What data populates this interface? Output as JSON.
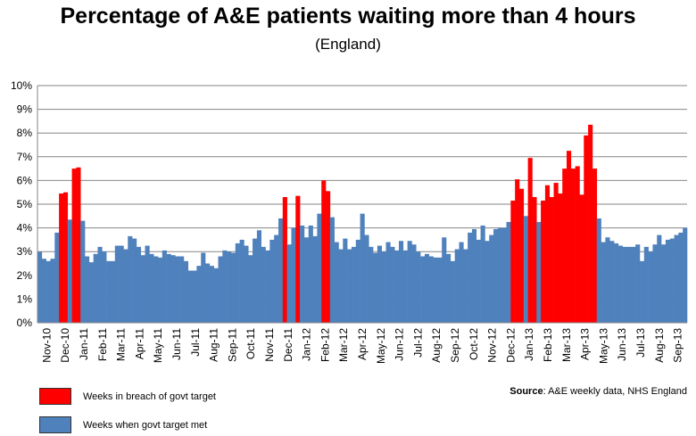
{
  "chart_data": {
    "type": "bar",
    "title": "Percentage of A&E patients waiting more than 4 hours",
    "subtitle": "(England)",
    "ylim": [
      0,
      10
    ],
    "y_ticks": [
      "0%",
      "1%",
      "2%",
      "3%",
      "4%",
      "5%",
      "6%",
      "7%",
      "8%",
      "9%",
      "10%"
    ],
    "x_tick_labels": [
      "Nov-10",
      "Dec-10",
      "Jan-11",
      "Feb-11",
      "Mar-11",
      "Apr-11",
      "May-11",
      "Jun-11",
      "Jul-11",
      "Aug-11",
      "Sep-11",
      "Oct-11",
      "Nov-11",
      "Dec-11",
      "Jan-12",
      "Feb-12",
      "Mar-12",
      "Apr-12",
      "May-12",
      "Jun-12",
      "Jul-12",
      "Aug-12",
      "Sep-12",
      "Oct-12",
      "Nov-12",
      "Dec-12",
      "Jan-13",
      "Feb-13",
      "Mar-13",
      "Apr-13",
      "May-13",
      "Jun-13",
      "Jul-13",
      "Aug-13",
      "Sep-13"
    ],
    "grid": true,
    "legend_position": "bottom-left",
    "series": [
      {
        "name": "Weeks in breach of govt target",
        "color": "#ff0000"
      },
      {
        "name": "Weeks when govt target met",
        "color": "#4f81bd"
      }
    ],
    "values": [
      3.0,
      2.7,
      2.6,
      2.7,
      3.8,
      5.45,
      5.5,
      4.35,
      6.5,
      6.55,
      4.3,
      2.8,
      2.55,
      2.9,
      3.2,
      3.0,
      2.6,
      2.6,
      3.25,
      3.25,
      3.1,
      3.65,
      3.55,
      3.2,
      2.85,
      3.25,
      2.9,
      2.8,
      2.75,
      3.05,
      2.9,
      2.85,
      2.8,
      2.8,
      2.6,
      2.2,
      2.2,
      2.4,
      2.95,
      2.5,
      2.4,
      2.3,
      2.8,
      3.05,
      3.0,
      2.95,
      3.35,
      3.5,
      3.25,
      2.85,
      3.55,
      3.9,
      3.2,
      3.05,
      3.5,
      3.7,
      4.4,
      5.3,
      3.3,
      4.0,
      5.35,
      4.1,
      3.6,
      4.1,
      3.65,
      4.6,
      6.0,
      5.55,
      4.45,
      3.4,
      3.1,
      3.55,
      3.1,
      3.2,
      3.5,
      4.6,
      3.7,
      3.2,
      2.95,
      3.25,
      3.0,
      3.4,
      3.2,
      3.05,
      3.45,
      3.05,
      3.45,
      3.3,
      3.0,
      2.8,
      2.9,
      2.8,
      2.75,
      2.75,
      3.6,
      2.9,
      2.6,
      3.1,
      3.4,
      3.1,
      3.8,
      3.95,
      3.5,
      4.1,
      3.45,
      3.7,
      3.95,
      4.0,
      4.0,
      4.25,
      5.15,
      6.05,
      5.65,
      4.5,
      6.95,
      5.3,
      4.25,
      5.15,
      5.8,
      5.3,
      5.9,
      5.45,
      6.5,
      7.25,
      6.5,
      6.6,
      5.4,
      7.9,
      8.35,
      6.5,
      4.4,
      3.4,
      3.6,
      3.45,
      3.35,
      3.25,
      3.2,
      3.2,
      3.2,
      3.3,
      2.6,
      3.2,
      3.0,
      3.3,
      3.7,
      3.3,
      3.5,
      3.55,
      3.7,
      3.8,
      4.0
    ],
    "breach": [
      false,
      false,
      false,
      false,
      false,
      true,
      true,
      false,
      true,
      true,
      false,
      false,
      false,
      false,
      false,
      false,
      false,
      false,
      false,
      false,
      false,
      false,
      false,
      false,
      false,
      false,
      false,
      false,
      false,
      false,
      false,
      false,
      false,
      false,
      false,
      false,
      false,
      false,
      false,
      false,
      false,
      false,
      false,
      false,
      false,
      false,
      false,
      false,
      false,
      false,
      false,
      false,
      false,
      false,
      false,
      false,
      false,
      true,
      false,
      false,
      true,
      false,
      false,
      false,
      false,
      false,
      true,
      true,
      false,
      false,
      false,
      false,
      false,
      false,
      false,
      false,
      false,
      false,
      false,
      false,
      false,
      false,
      false,
      false,
      false,
      false,
      false,
      false,
      false,
      false,
      false,
      false,
      false,
      false,
      false,
      false,
      false,
      false,
      false,
      false,
      false,
      false,
      false,
      false,
      false,
      false,
      false,
      false,
      false,
      false,
      true,
      true,
      true,
      false,
      true,
      true,
      false,
      true,
      true,
      true,
      true,
      true,
      true,
      true,
      true,
      true,
      true,
      true,
      true,
      true,
      false,
      false,
      false,
      false,
      false,
      false,
      false,
      false,
      false,
      false,
      false,
      false,
      false,
      false,
      false,
      false,
      false,
      false,
      false,
      false,
      false
    ]
  },
  "legend": {
    "breach_label": "Weeks in breach of govt target",
    "met_label": "Weeks when govt target met"
  },
  "source": {
    "prefix": "Source",
    "text": ": A&E weekly data, NHS England"
  }
}
